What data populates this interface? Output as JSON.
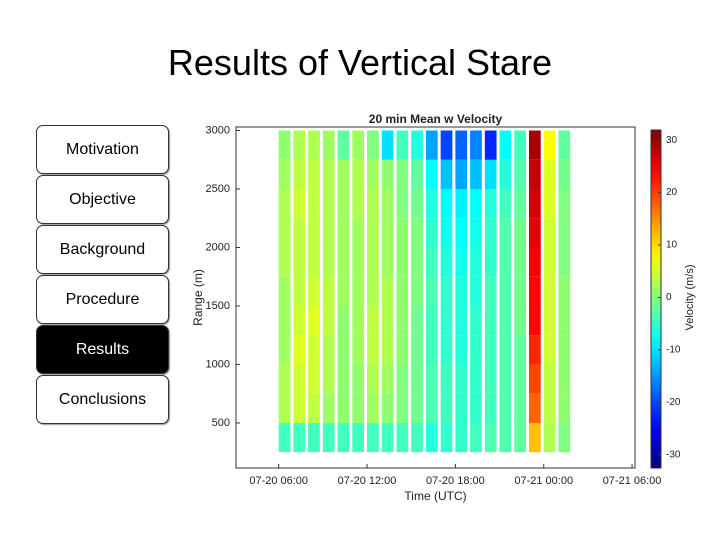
{
  "title": "Results of Vertical Stare",
  "nav": {
    "items": [
      "Motivation",
      "Objective",
      "Background",
      "Procedure",
      "Results",
      "Conclusions"
    ],
    "active": 4
  },
  "chart_data": {
    "type": "heatmap",
    "title": "20 min Mean w Velocity",
    "xlabel": "Time (UTC)",
    "ylabel": "Range (m)",
    "colorbar_label": "Velocity (m/s)",
    "xlim": [
      3.1,
      30.2
    ],
    "xticks": [
      {
        "value": 6,
        "label": "07-20 06:00"
      },
      {
        "value": 12,
        "label": "07-20 12:00"
      },
      {
        "value": 18,
        "label": "07-20 18:00"
      },
      {
        "value": 24,
        "label": "07-21 00:00"
      },
      {
        "value": 30,
        "label": "07-21 06:00"
      }
    ],
    "ylim": [
      115,
      3030
    ],
    "yticks": [
      500,
      1000,
      1500,
      2000,
      2500,
      3000
    ],
    "clim": [
      -32.5,
      32.5
    ],
    "cticks": [
      30,
      20,
      10,
      0,
      -10,
      -20,
      -30
    ],
    "colormap": "jet",
    "x": [
      6.5,
      7.5,
      8.5,
      9.5,
      10.5,
      11.5,
      12.5,
      13.5,
      14.5,
      15.5,
      16.5,
      17.5,
      18.5,
      19.5,
      20.5,
      21.5,
      22.5,
      23.5,
      24.5,
      25.5
    ],
    "y": [
      375,
      625,
      875,
      1125,
      1375,
      1625,
      1875,
      2125,
      2375,
      2625,
      2875
    ],
    "values": [
      [
        -4,
        -4,
        -4,
        -4,
        -4,
        -4,
        -4,
        -4,
        -4,
        -4,
        -6,
        -5,
        -5,
        -4,
        -3,
        -3,
        -2,
        12,
        3,
        0
      ],
      [
        3,
        5,
        4,
        2,
        1,
        1,
        2,
        1,
        0,
        -1,
        -3,
        -4,
        -5,
        -5,
        -4,
        -3,
        -2,
        18,
        4,
        1
      ],
      [
        3,
        5,
        5,
        3,
        1,
        1,
        3,
        2,
        0,
        -1,
        -3,
        -4,
        -5,
        -5,
        -4,
        -3,
        -2,
        20,
        4,
        1
      ],
      [
        2,
        6,
        5,
        3,
        1,
        2,
        4,
        3,
        1,
        -1,
        -4,
        -5,
        -6,
        -5,
        -4,
        -3,
        -2,
        22,
        5,
        1
      ],
      [
        2,
        5,
        6,
        4,
        1,
        2,
        4,
        3,
        1,
        -1,
        -4,
        -5,
        -6,
        -5,
        -4,
        -3,
        -1,
        24,
        5,
        1
      ],
      [
        2,
        4,
        5,
        4,
        2,
        2,
        3,
        3,
        1,
        0,
        -3,
        -5,
        -6,
        -6,
        -4,
        -3,
        -1,
        24,
        5,
        1
      ],
      [
        3,
        4,
        4,
        3,
        2,
        2,
        3,
        2,
        1,
        0,
        -4,
        -6,
        -7,
        -6,
        -5,
        -3,
        -1,
        25,
        5,
        0
      ],
      [
        3,
        4,
        4,
        3,
        2,
        2,
        3,
        2,
        1,
        0,
        -5,
        -7,
        -8,
        -7,
        -5,
        -3,
        -1,
        26,
        5,
        0
      ],
      [
        3,
        5,
        4,
        3,
        2,
        3,
        3,
        2,
        0,
        -1,
        -6,
        -8,
        -9,
        -8,
        -6,
        -4,
        -2,
        27,
        6,
        0
      ],
      [
        2,
        4,
        4,
        3,
        2,
        3,
        2,
        1,
        0,
        -2,
        -8,
        -12,
        -14,
        -12,
        -10,
        -6,
        -3,
        28,
        6,
        -1
      ],
      [
        1,
        3,
        3,
        2,
        -2,
        2,
        0,
        -10,
        -4,
        -6,
        -14,
        -20,
        -18,
        -16,
        -22,
        -8,
        -4,
        30,
        8,
        -2
      ]
    ]
  }
}
